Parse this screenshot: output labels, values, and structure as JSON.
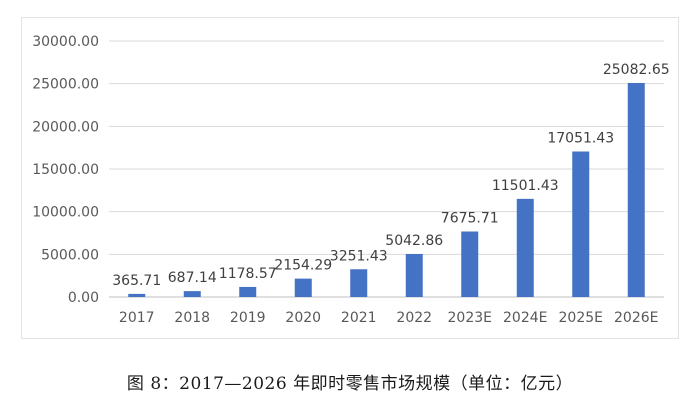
{
  "chart_data": {
    "type": "bar",
    "title": "",
    "xlabel": "",
    "ylabel": "",
    "categories": [
      "2017",
      "2018",
      "2019",
      "2020",
      "2021",
      "2022",
      "2023E",
      "2024E",
      "2025E",
      "2026E"
    ],
    "values": [
      365.71,
      687.14,
      1178.57,
      2154.29,
      3251.43,
      5042.86,
      7675.71,
      11501.43,
      17051.43,
      25082.65
    ],
    "value_labels": [
      "365.71",
      "687.14",
      "1178.57",
      "2154.29",
      "3251.43",
      "5042.86",
      "7675.71",
      "11501.43",
      "17051.43",
      "25082.65"
    ],
    "ylim": [
      0,
      30000
    ],
    "yticks": [
      0,
      5000,
      10000,
      15000,
      20000,
      25000,
      30000
    ],
    "ytick_labels": [
      "0.00",
      "5000.00",
      "10000.00",
      "15000.00",
      "20000.00",
      "25000.00",
      "30000.00"
    ],
    "grid": true,
    "legend": "none",
    "bar_color": "#4472c4"
  },
  "caption": "图 8：2017—2026 年即时零售市场规模（单位：亿元）"
}
